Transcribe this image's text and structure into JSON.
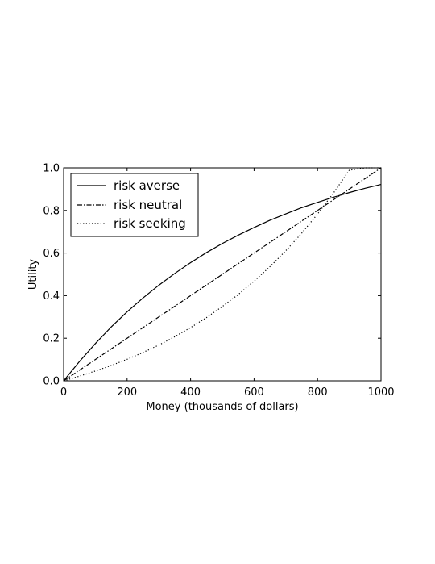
{
  "chart_data": {
    "type": "line",
    "xlabel": "Money (thousands of  dollars)",
    "ylabel": "Utility",
    "xlim": [
      0,
      1000
    ],
    "ylim": [
      0,
      1.0
    ],
    "x_ticks": [
      "0",
      "200",
      "400",
      "600",
      "800",
      "1000"
    ],
    "y_ticks": [
      "0.0",
      "0.2",
      "0.4",
      "0.6",
      "0.8",
      "1.0"
    ],
    "grid": false,
    "legend_position": "top-left",
    "x": [
      0,
      50,
      100,
      150,
      200,
      250,
      300,
      350,
      400,
      450,
      500,
      550,
      600,
      650,
      700,
      750,
      800,
      850,
      900,
      950,
      1000
    ],
    "series": [
      {
        "name": "risk averse",
        "line_style": "solid",
        "values": [
          0.0,
          0.091,
          0.175,
          0.253,
          0.324,
          0.389,
          0.449,
          0.504,
          0.555,
          0.602,
          0.645,
          0.684,
          0.72,
          0.754,
          0.784,
          0.813,
          0.838,
          0.862,
          0.884,
          0.904,
          0.922
        ]
      },
      {
        "name": "risk neutral",
        "line_style": "dashdot",
        "values": [
          0.0,
          0.05,
          0.1,
          0.15,
          0.2,
          0.25,
          0.3,
          0.35,
          0.4,
          0.45,
          0.5,
          0.55,
          0.6,
          0.65,
          0.7,
          0.75,
          0.8,
          0.85,
          0.9,
          0.95,
          1.0
        ]
      },
      {
        "name": "risk seeking",
        "line_style": "dotted",
        "values": [
          0.0,
          0.022,
          0.046,
          0.072,
          0.101,
          0.133,
          0.168,
          0.207,
          0.25,
          0.297,
          0.349,
          0.405,
          0.468,
          0.536,
          0.611,
          0.693,
          0.783,
          0.881,
          0.989,
          1.0,
          1.0
        ]
      }
    ]
  }
}
